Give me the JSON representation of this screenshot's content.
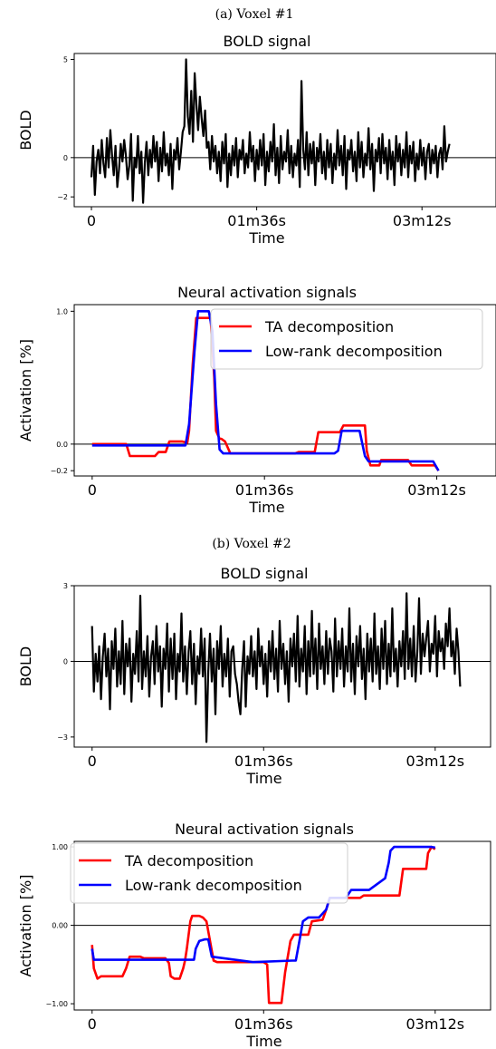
{
  "chart_data": [
    {
      "id": "voxel1-bold",
      "type": "line",
      "caption": "(a) Voxel #1",
      "title": "BOLD signal",
      "xlabel": "Time",
      "ylabel": "BOLD",
      "xlim": [
        -10,
        235
      ],
      "ylim": [
        -2.5,
        5.3
      ],
      "xticks": [
        {
          "v": 0,
          "label": "0"
        },
        {
          "v": 96,
          "label": "01m36s"
        },
        {
          "v": 192,
          "label": "03m12s"
        }
      ],
      "yticks": [
        {
          "v": -2,
          "label": "−2"
        },
        {
          "v": 0,
          "label": "0"
        },
        {
          "v": 5,
          "label": "5"
        }
      ],
      "hline": 0,
      "series": [
        {
          "color": "#000000",
          "values": [
            -1.0,
            0.6,
            -1.9,
            -0.2,
            0.4,
            -0.8,
            0.9,
            -0.3,
            -1.0,
            1.0,
            -0.5,
            1.4,
            0.1,
            -0.9,
            0.6,
            -1.5,
            -0.6,
            0.7,
            -0.2,
            0.9,
            0.1,
            -1.1,
            -0.4,
            1.2,
            -2.2,
            0.0,
            -0.5,
            1.1,
            -0.8,
            0.3,
            -2.3,
            -0.3,
            0.8,
            -0.9,
            0.4,
            -0.5,
            1.1,
            -0.2,
            0.8,
            -1.2,
            0.5,
            -0.7,
            1.3,
            -0.4,
            0.2,
            -0.9,
            0.7,
            -1.6,
            0.4,
            -0.1,
            1.0,
            -0.6,
            0.3,
            1.3,
            1.6,
            5.0,
            2.1,
            1.2,
            3.4,
            0.8,
            4.3,
            2.7,
            1.4,
            3.1,
            2.0,
            1.1,
            2.4,
            0.5,
            0.8,
            -0.6,
            1.1,
            -0.2,
            0.6,
            -0.8,
            0.3,
            -1.2,
            0.8,
            -0.3,
            1.2,
            -1.5,
            0.2,
            -0.9,
            0.6,
            -0.4,
            1.0,
            -1.0,
            0.4,
            -0.1,
            0.9,
            -0.8,
            0.2,
            -0.5,
            1.3,
            -0.2,
            0.6,
            -1.2,
            0.4,
            -0.6,
            0.9,
            -0.4,
            1.2,
            -1.4,
            0.3,
            -0.7,
            0.8,
            -0.2,
            1.7,
            -0.9,
            0.5,
            -1.3,
            1.1,
            -0.6,
            0.3,
            -0.2,
            1.4,
            -0.8,
            0.6,
            -1.0,
            0.2,
            -0.4,
            0.9,
            -1.5,
            3.9,
            0.4,
            -0.6,
            1.3,
            -0.9,
            0.7,
            -0.3,
            0.8,
            -1.4,
            0.5,
            -0.2,
            1.2,
            -0.8,
            0.3,
            -1.1,
            0.9,
            -0.5,
            0.7,
            -1.3,
            0.2,
            -0.6,
            1.4,
            -0.4,
            0.6,
            -0.9,
            1.1,
            -1.6,
            0.4,
            -0.1,
            0.9,
            -0.7,
            0.3,
            -1.2,
            1.3,
            -0.5,
            0.8,
            -1.0,
            0.2,
            -0.4,
            1.5,
            -0.6,
            0.7,
            -1.7,
            0.4,
            -0.2,
            1.0,
            -0.8,
            1.2,
            -0.3,
            0.5,
            -1.1,
            0.9,
            -0.6,
            0.3,
            -1.4,
            1.1,
            -0.2,
            0.7,
            -0.9,
            0.4,
            -0.5,
            1.3,
            -1.0,
            0.6,
            -0.3,
            0.8,
            -1.2,
            0.2,
            -0.6,
            0.9,
            -0.4,
            0.5,
            -1.1,
            0.3,
            0.7,
            -0.8,
            0.4,
            -0.3,
            0.6,
            -1.0,
            0.2,
            0.5,
            -0.6,
            1.6,
            -0.2,
            0.3,
            0.7
          ]
        }
      ]
    },
    {
      "id": "voxel1-neural",
      "type": "line",
      "title": "Neural activation signals",
      "xlabel": "Time",
      "ylabel": "Activation [%]",
      "xlim": [
        -10,
        225
      ],
      "ylim": [
        -0.24,
        1.05
      ],
      "xticks": [
        {
          "v": 0,
          "label": "0"
        },
        {
          "v": 96,
          "label": "01m36s"
        },
        {
          "v": 192,
          "label": "03m12s"
        }
      ],
      "yticks": [
        {
          "v": -0.2,
          "label": "−0.2"
        },
        {
          "v": 0,
          "label": "0.0"
        },
        {
          "v": 1,
          "label": "1.0"
        }
      ],
      "hline": 0,
      "legend": {
        "position": "top-right",
        "entries": [
          "TA decomposition",
          "Low-rank decomposition"
        ]
      },
      "series": [
        {
          "name": "TA decomposition",
          "color": "#ff0000",
          "x": [
            0,
            19,
            21,
            35,
            37,
            41,
            43,
            50,
            53,
            54,
            56,
            58,
            60,
            66,
            68,
            69,
            71,
            72,
            74,
            77,
            79,
            113,
            115,
            124,
            126,
            138,
            140,
            142,
            144,
            152,
            153,
            155,
            160,
            161,
            176,
            178,
            189,
            191,
            193
          ],
          "y": [
            0.0,
            0.0,
            -0.09,
            -0.09,
            -0.06,
            -0.06,
            0.02,
            0.02,
            0.01,
            0.1,
            0.6,
            0.95,
            0.95,
            0.95,
            0.5,
            0.1,
            0.04,
            0.04,
            0.02,
            -0.07,
            -0.07,
            -0.07,
            -0.06,
            -0.06,
            0.09,
            0.09,
            0.14,
            0.14,
            0.14,
            0.14,
            -0.05,
            -0.16,
            -0.16,
            -0.12,
            -0.12,
            -0.16,
            -0.16,
            -0.16,
            -0.2
          ]
        },
        {
          "name": "Low-rank decomposition",
          "color": "#0000ff",
          "x": [
            0,
            52,
            54,
            57,
            59,
            65,
            67,
            69,
            71,
            73,
            75,
            78,
            135,
            137,
            139,
            147,
            149,
            152,
            154,
            188,
            190,
            193
          ],
          "y": [
            -0.01,
            -0.01,
            0.15,
            0.7,
            1.0,
            1.0,
            0.85,
            0.3,
            -0.04,
            -0.07,
            -0.07,
            -0.07,
            -0.07,
            -0.05,
            0.1,
            0.1,
            0.1,
            -0.09,
            -0.13,
            -0.13,
            -0.13,
            -0.2
          ]
        }
      ]
    },
    {
      "id": "voxel2-bold",
      "type": "line",
      "caption": "(b) Voxel #2",
      "title": "BOLD signal",
      "xlabel": "Time",
      "ylabel": "BOLD",
      "xlim": [
        -10,
        223
      ],
      "ylim": [
        -3.4,
        3.0
      ],
      "xticks": [
        {
          "v": 0,
          "label": "0"
        },
        {
          "v": 96,
          "label": "01m36s"
        },
        {
          "v": 192,
          "label": "03m12s"
        }
      ],
      "yticks": [
        {
          "v": -3,
          "label": "−3"
        },
        {
          "v": 0,
          "label": "0"
        },
        {
          "v": 3,
          "label": "3"
        }
      ],
      "hline": 0,
      "series": [
        {
          "color": "#000000",
          "values": [
            1.4,
            -1.2,
            0.3,
            -0.8,
            0.6,
            -1.5,
            0.2,
            1.1,
            -0.6,
            0.5,
            -1.9,
            0.8,
            -0.3,
            1.3,
            -1.0,
            0.4,
            -0.9,
            1.6,
            -1.3,
            0.7,
            -0.2,
            0.9,
            -1.6,
            0.3,
            -0.5,
            1.2,
            -0.8,
            2.6,
            -1.1,
            0.4,
            -0.6,
            1.0,
            -1.4,
            0.2,
            0.8,
            -0.9,
            1.4,
            -0.4,
            0.6,
            -1.8,
            0.5,
            -0.3,
            1.5,
            -1.2,
            0.9,
            -0.7,
            1.1,
            -1.5,
            0.3,
            -0.4,
            1.9,
            -0.8,
            0.6,
            -1.3,
            0.4,
            1.2,
            -0.9,
            0.7,
            -1.7,
            0.2,
            -0.5,
            1.3,
            -0.6,
            0.9,
            -3.2,
            -0.4,
            1.1,
            -0.8,
            0.5,
            -2.1,
            0.8,
            -0.3,
            1.4,
            -1.0,
            0.3,
            -0.6,
            0.9,
            -1.4,
            0.4,
            0.6,
            -0.5,
            -0.9,
            -1.6,
            -2.1,
            -0.3,
            0.8,
            -1.8,
            0.2,
            -0.5,
            1.0,
            -0.6,
            0.4,
            -1.1,
            1.3,
            -0.2,
            0.6,
            -0.9,
            0.3,
            -1.4,
            0.8,
            -0.4,
            1.2,
            -0.7,
            0.5,
            -1.2,
            1.6,
            -0.3,
            0.7,
            -0.9,
            0.4,
            -1.6,
            0.9,
            -0.2,
            1.1,
            -0.8,
            1.8,
            -1.0,
            0.5,
            -0.4,
            1.4,
            -1.3,
            0.8,
            -0.6,
            2.0,
            -0.5,
            0.9,
            -1.1,
            1.5,
            -0.3,
            0.6,
            -0.9,
            1.2,
            -0.5,
            0.9,
            0.4,
            -1.2,
            1.7,
            -0.6,
            0.8,
            -0.3,
            1.3,
            -1.0,
            0.6,
            -0.4,
            2.1,
            -0.8,
            0.7,
            -1.3,
            1.0,
            -0.2,
            1.4,
            -0.7,
            0.5,
            -1.5,
            1.1,
            -0.4,
            0.9,
            -0.8,
            1.9,
            -0.5,
            0.6,
            -1.1,
            1.3,
            -0.3,
            1.6,
            -0.9,
            0.7,
            -0.6,
            2.1,
            -0.4,
            0.5,
            -1.0,
            0.8,
            -0.2,
            1.2,
            -0.7,
            2.7,
            -0.3,
            0.9,
            -0.6,
            1.4,
            -0.8,
            0.4,
            2.5,
            -0.5,
            1.1,
            0.2,
            0.9,
            1.6,
            -0.4,
            0.7,
            0.3,
            1.8,
            -0.6,
            1.2,
            0.4,
            0.9,
            -0.3,
            1.5,
            0.6,
            2.1,
            0.2,
            0.8,
            -0.5,
            1.3,
            0.4,
            -1.0
          ]
        }
      ]
    },
    {
      "id": "voxel2-neural",
      "type": "line",
      "title": "Neural activation signals",
      "xlabel": "Time",
      "ylabel": "Activation [%]",
      "xlim": [
        -10,
        223
      ],
      "ylim": [
        -1.08,
        1.07
      ],
      "xticks": [
        {
          "v": 0,
          "label": "0"
        },
        {
          "v": 96,
          "label": "01m36s"
        },
        {
          "v": 192,
          "label": "03m12s"
        }
      ],
      "yticks": [
        {
          "v": -1,
          "label": "−1.00"
        },
        {
          "v": 0,
          "label": "0.00"
        },
        {
          "v": 1,
          "label": "1.00"
        }
      ],
      "hline": 0,
      "legend": {
        "position": "top-left",
        "entries": [
          "TA decomposition",
          "Low-rank decomposition"
        ]
      },
      "series": [
        {
          "name": "TA decomposition",
          "color": "#ff0000",
          "x": [
            0,
            1,
            3,
            5,
            17,
            19,
            21,
            27,
            29,
            41,
            43,
            44,
            46,
            49,
            51,
            52,
            53,
            55,
            56,
            58,
            60,
            62,
            64,
            68,
            70,
            96,
            98,
            99,
            106,
            108,
            111,
            113,
            121,
            123,
            129,
            131,
            133,
            150,
            152,
            164,
            166,
            172,
            174,
            185,
            187,
            188,
            190,
            192
          ],
          "y": [
            -0.25,
            -0.55,
            -0.68,
            -0.65,
            -0.65,
            -0.55,
            -0.4,
            -0.4,
            -0.42,
            -0.42,
            -0.48,
            -0.65,
            -0.68,
            -0.68,
            -0.55,
            -0.45,
            -0.3,
            0.05,
            0.12,
            0.12,
            0.12,
            0.1,
            0.05,
            -0.45,
            -0.47,
            -0.47,
            -0.5,
            -0.99,
            -0.99,
            -0.6,
            -0.2,
            -0.12,
            -0.12,
            0.05,
            0.07,
            0.2,
            0.35,
            0.35,
            0.38,
            0.38,
            0.38,
            0.38,
            0.72,
            0.72,
            0.72,
            0.92,
            1.0,
            0.97
          ]
        },
        {
          "name": "Low-rank decomposition",
          "color": "#0000ff",
          "x": [
            0,
            1,
            55,
            57,
            58,
            60,
            63,
            65,
            67,
            90,
            112,
            114,
            116,
            118,
            121,
            125,
            127,
            131,
            133,
            137,
            142,
            145,
            147,
            152,
            155,
            164,
            166,
            167,
            169,
            172,
            177,
            190,
            192
          ],
          "y": [
            -0.3,
            -0.44,
            -0.44,
            -0.44,
            -0.3,
            -0.2,
            -0.18,
            -0.18,
            -0.4,
            -0.47,
            -0.45,
            -0.45,
            -0.2,
            0.05,
            0.1,
            0.1,
            0.1,
            0.2,
            0.35,
            0.35,
            0.35,
            0.45,
            0.45,
            0.45,
            0.45,
            0.6,
            0.8,
            0.95,
            1.0,
            1.0,
            1.0,
            1.0,
            0.99
          ]
        }
      ]
    }
  ]
}
